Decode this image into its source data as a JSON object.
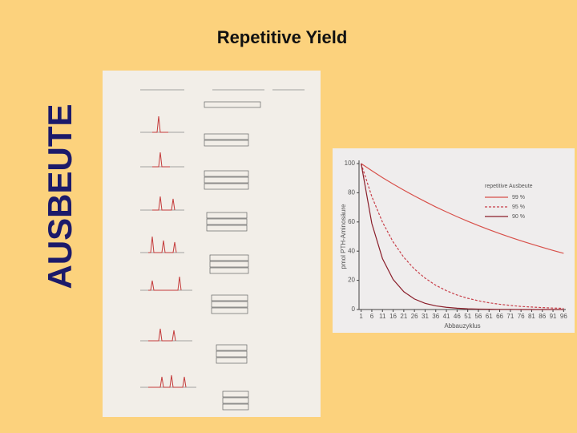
{
  "slide": {
    "title": "Repetitive Yield",
    "side_label": "AUSBEUTE"
  },
  "chart_data": {
    "type": "line",
    "x_label": "Abbauzyklus",
    "y_label": "pmol PTH-Aminosäure",
    "legend_title": "repetitive Ausbeute",
    "x": [
      1,
      6,
      11,
      16,
      21,
      26,
      31,
      36,
      41,
      46,
      51,
      56,
      61,
      66,
      71,
      76,
      81,
      86,
      91,
      96
    ],
    "series": [
      {
        "name": "99 %",
        "color": "#d8504a",
        "dash": false,
        "values": [
          100,
          95.1,
          90.4,
          86.0,
          81.8,
          77.8,
          74.0,
          70.3,
          66.9,
          63.6,
          60.5,
          57.5,
          54.7,
          52.0,
          49.5,
          47.1,
          44.8,
          42.6,
          40.5,
          38.5
        ]
      },
      {
        "name": "95 %",
        "color": "#c8404a",
        "dash": true,
        "values": [
          100,
          77.4,
          59.9,
          46.3,
          35.8,
          27.7,
          21.5,
          16.6,
          12.9,
          9.9,
          7.7,
          6.0,
          4.6,
          3.6,
          2.8,
          2.1,
          1.7,
          1.3,
          1.0,
          0.8
        ]
      },
      {
        "name": "90 %",
        "color": "#8a1e2a",
        "dash": false,
        "values": [
          100,
          59.0,
          34.9,
          20.6,
          12.2,
          7.2,
          4.2,
          2.5,
          1.5,
          0.9,
          0.5,
          0.3,
          0.2,
          0.1,
          0.1,
          0,
          0,
          0,
          0,
          0
        ]
      }
    ],
    "xlim": [
      0,
      97
    ],
    "ylim": [
      0,
      100
    ],
    "xticks": [
      1,
      6,
      11,
      16,
      21,
      26,
      31,
      36,
      41,
      46,
      51,
      56,
      61,
      66,
      71,
      76,
      81,
      86,
      91,
      96
    ],
    "yticks": [
      0,
      20,
      40,
      60,
      80,
      100
    ],
    "grid": false
  }
}
